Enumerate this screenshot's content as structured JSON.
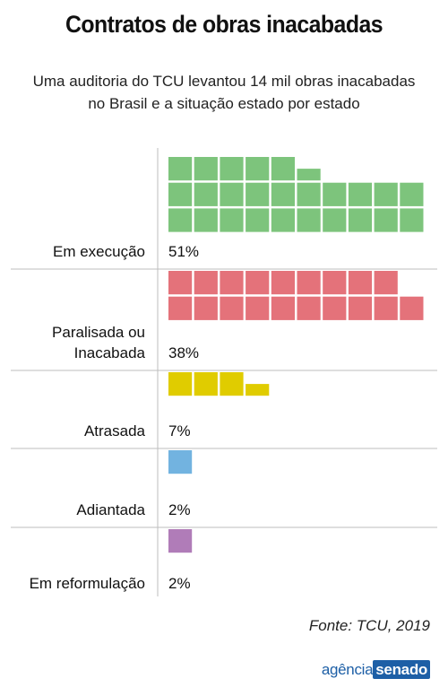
{
  "title": "Contratos de obras inacabadas",
  "subtitle": {
    "line1": "Uma auditoria do TCU levantou 14 mil obras inacabadas",
    "line2": "no Brasil e a situação estado por estado"
  },
  "chart_data": {
    "type": "waffle",
    "categories": [
      {
        "label_lines": [
          "Em execução"
        ],
        "value_label": "51%",
        "value": 51,
        "color": "#7dc47c"
      },
      {
        "label_lines": [
          "Paralisada ou",
          "Inacabada"
        ],
        "value_label": "38%",
        "value": 38,
        "color": "#e4727a"
      },
      {
        "label_lines": [
          "Atrasada"
        ],
        "value_label": "7%",
        "value": 7,
        "color": "#e0cc00"
      },
      {
        "label_lines": [
          "Adiantada"
        ],
        "value_label": "2%",
        "value": 2,
        "color": "#72b3e0"
      },
      {
        "label_lines": [
          "Em reformulação"
        ],
        "value_label": "2%",
        "value": 2,
        "color": "#b07cb8"
      }
    ],
    "units_per_square": 2
  },
  "source": "Fonte: TCU, 2019",
  "logo": {
    "part1": "agência",
    "part2": "senado"
  },
  "colors": {
    "divider": "#bdbdbd",
    "text": "#111111"
  }
}
